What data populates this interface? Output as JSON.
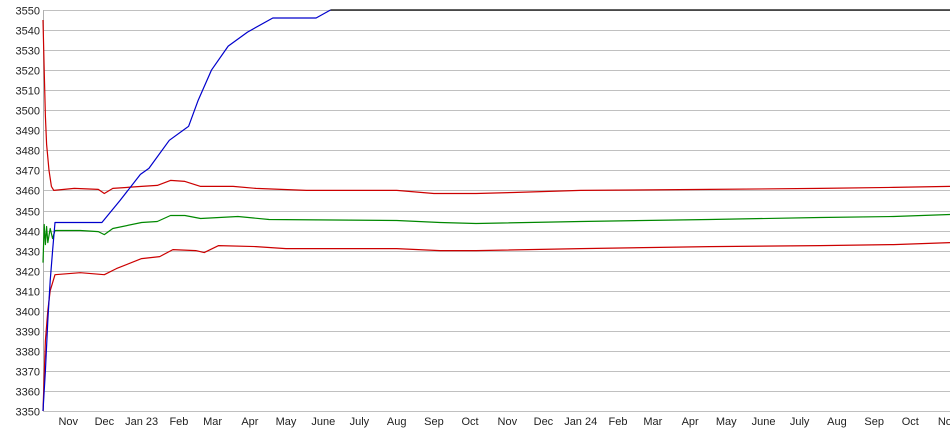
{
  "chart_data": {
    "type": "line",
    "title": "",
    "xlabel": "",
    "ylabel": "",
    "ylim": [
      3350,
      3550
    ],
    "xlim": [
      "2022-10-25",
      "2024-11-17"
    ],
    "grid": true,
    "yticks": [
      3350,
      3360,
      3370,
      3380,
      3390,
      3400,
      3410,
      3420,
      3430,
      3440,
      3450,
      3460,
      3470,
      3480,
      3490,
      3500,
      3510,
      3520,
      3530,
      3540,
      3550
    ],
    "xticks": [
      {
        "label": "Nov",
        "date": "2022-11-15"
      },
      {
        "label": "Dec",
        "date": "2022-12-15"
      },
      {
        "label": "Jan 23",
        "date": "2023-01-15"
      },
      {
        "label": "Feb",
        "date": "2023-02-15"
      },
      {
        "label": "Mar",
        "date": "2023-03-15"
      },
      {
        "label": "Apr",
        "date": "2023-04-15"
      },
      {
        "label": "May",
        "date": "2023-05-15"
      },
      {
        "label": "June",
        "date": "2023-06-15"
      },
      {
        "label": "July",
        "date": "2023-07-15"
      },
      {
        "label": "Aug",
        "date": "2023-08-15"
      },
      {
        "label": "Sep",
        "date": "2023-09-15"
      },
      {
        "label": "Oct",
        "date": "2023-10-15"
      },
      {
        "label": "Nov",
        "date": "2023-11-15"
      },
      {
        "label": "Dec",
        "date": "2023-12-15"
      },
      {
        "label": "Jan 24",
        "date": "2024-01-15"
      },
      {
        "label": "Feb",
        "date": "2024-02-15"
      },
      {
        "label": "Mar",
        "date": "2024-03-15"
      },
      {
        "label": "Apr",
        "date": "2024-04-15"
      },
      {
        "label": "May",
        "date": "2024-05-15"
      },
      {
        "label": "June",
        "date": "2024-06-15"
      },
      {
        "label": "July",
        "date": "2024-07-15"
      },
      {
        "label": "Aug",
        "date": "2024-08-15"
      },
      {
        "label": "Sep",
        "date": "2024-09-15"
      },
      {
        "label": "Oct",
        "date": "2024-10-15"
      },
      {
        "label": "Nov",
        "date": "2024-11-15"
      }
    ],
    "series": [
      {
        "color": "#cc0000",
        "points": [
          [
            "2022-10-25",
            3545
          ],
          [
            "2022-10-26",
            3520
          ],
          [
            "2022-10-27",
            3497
          ],
          [
            "2022-10-28",
            3483
          ],
          [
            "2022-10-30",
            3470
          ],
          [
            "2022-11-01",
            3462
          ],
          [
            "2022-11-03",
            3460
          ],
          [
            "2022-11-20",
            3461
          ],
          [
            "2022-12-10",
            3460.5
          ],
          [
            "2022-12-15",
            3458.5
          ],
          [
            "2022-12-22",
            3461
          ],
          [
            "2023-01-15",
            3462
          ],
          [
            "2023-01-28",
            3462.5
          ],
          [
            "2023-02-08",
            3465
          ],
          [
            "2023-02-20",
            3464.5
          ],
          [
            "2023-03-05",
            3462
          ],
          [
            "2023-04-01",
            3462
          ],
          [
            "2023-04-20",
            3461
          ],
          [
            "2023-06-01",
            3460
          ],
          [
            "2023-08-15",
            3460
          ],
          [
            "2023-09-15",
            3458.5
          ],
          [
            "2023-10-20",
            3458.5
          ],
          [
            "2023-11-20",
            3459
          ],
          [
            "2024-01-15",
            3460
          ],
          [
            "2024-05-01",
            3460.5
          ],
          [
            "2024-08-01",
            3461
          ],
          [
            "2024-10-01",
            3461.5
          ],
          [
            "2024-11-17",
            3462
          ]
        ]
      },
      {
        "color": "#008800",
        "points": [
          [
            "2022-10-25",
            3424
          ],
          [
            "2022-10-26",
            3443
          ],
          [
            "2022-10-27",
            3433
          ],
          [
            "2022-10-28",
            3442
          ],
          [
            "2022-10-29",
            3434
          ],
          [
            "2022-10-31",
            3441
          ],
          [
            "2022-11-02",
            3436
          ],
          [
            "2022-11-04",
            3440
          ],
          [
            "2022-11-25",
            3440
          ],
          [
            "2022-12-10",
            3439.5
          ],
          [
            "2022-12-15",
            3438
          ],
          [
            "2022-12-22",
            3441
          ],
          [
            "2023-01-15",
            3444
          ],
          [
            "2023-01-28",
            3444.5
          ],
          [
            "2023-02-08",
            3447.5
          ],
          [
            "2023-02-20",
            3447.5
          ],
          [
            "2023-03-05",
            3446
          ],
          [
            "2023-04-05",
            3447
          ],
          [
            "2023-05-01",
            3445.5
          ],
          [
            "2023-08-15",
            3445
          ],
          [
            "2023-09-20",
            3444
          ],
          [
            "2023-10-20",
            3443.5
          ],
          [
            "2024-01-15",
            3444.5
          ],
          [
            "2024-05-01",
            3445.5
          ],
          [
            "2024-08-01",
            3446.5
          ],
          [
            "2024-10-01",
            3447
          ],
          [
            "2024-11-17",
            3448
          ]
        ]
      },
      {
        "color": "#cc0000",
        "points": [
          [
            "2022-10-25",
            3350
          ],
          [
            "2022-10-27",
            3385
          ],
          [
            "2022-10-29",
            3400
          ],
          [
            "2022-10-31",
            3410
          ],
          [
            "2022-11-02",
            3414
          ],
          [
            "2022-11-04",
            3418
          ],
          [
            "2022-11-25",
            3419
          ],
          [
            "2022-12-15",
            3418
          ],
          [
            "2022-12-25",
            3421
          ],
          [
            "2023-01-15",
            3426
          ],
          [
            "2023-01-30",
            3427
          ],
          [
            "2023-02-10",
            3430.5
          ],
          [
            "2023-03-01",
            3430
          ],
          [
            "2023-03-08",
            3429
          ],
          [
            "2023-03-20",
            3432.5
          ],
          [
            "2023-04-20",
            3432
          ],
          [
            "2023-05-15",
            3431
          ],
          [
            "2023-08-15",
            3431
          ],
          [
            "2023-09-20",
            3430
          ],
          [
            "2023-10-20",
            3430
          ],
          [
            "2024-01-15",
            3431
          ],
          [
            "2024-05-01",
            3432
          ],
          [
            "2024-08-01",
            3432.5
          ],
          [
            "2024-10-01",
            3433
          ],
          [
            "2024-11-17",
            3434
          ]
        ]
      },
      {
        "color": "#0000cc",
        "points": [
          [
            "2022-10-25",
            3350
          ],
          [
            "2022-10-27",
            3370
          ],
          [
            "2022-10-29",
            3395
          ],
          [
            "2022-10-31",
            3415
          ],
          [
            "2022-11-02",
            3430
          ],
          [
            "2022-11-04",
            3444
          ],
          [
            "2022-12-13",
            3444
          ],
          [
            "2022-12-28",
            3455
          ],
          [
            "2023-01-14",
            3468
          ],
          [
            "2023-01-21",
            3471
          ],
          [
            "2023-02-07",
            3485
          ],
          [
            "2023-02-23",
            3492
          ],
          [
            "2023-03-03",
            3505
          ],
          [
            "2023-03-14",
            3520
          ],
          [
            "2023-03-28",
            3532
          ],
          [
            "2023-04-13",
            3539
          ],
          [
            "2023-05-04",
            3546
          ],
          [
            "2023-06-09",
            3546
          ],
          [
            "2023-06-21",
            3550
          ]
        ]
      },
      {
        "color": "#000000",
        "points": [
          [
            "2023-06-21",
            3550
          ],
          [
            "2024-11-17",
            3550
          ]
        ]
      }
    ]
  }
}
